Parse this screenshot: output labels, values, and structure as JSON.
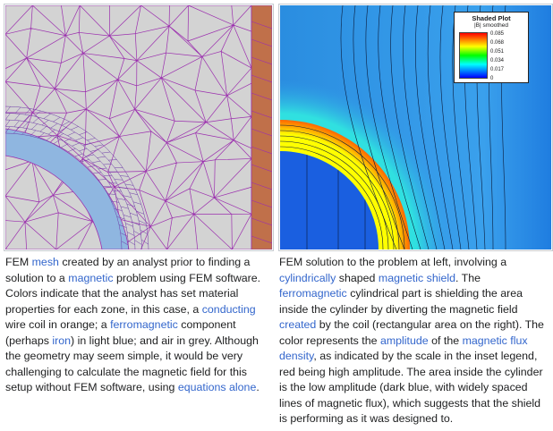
{
  "left_caption": {
    "t1": "FEM ",
    "link_mesh": "mesh",
    "t2": " created by an analyst prior to finding a solution to a ",
    "link_magnetic": "magnetic",
    "t3": " problem using FEM software. Colors indicate that the analyst has set material properties for each zone, in this case, a ",
    "link_conducting": "conducting",
    "t4": " wire coil in orange; a ",
    "link_ferromagnetic": "ferromagnetic",
    "t5": " component (perhaps ",
    "link_iron": "iron",
    "t6": ") in light blue; and air in grey. Although the geometry may seem simple, it would be very challenging to calculate the magnetic field for this setup without FEM software, using ",
    "link_equations": "equations alone",
    "t7": "."
  },
  "right_caption": {
    "t1": "FEM solution to the problem at left, involving a ",
    "link_cylindrically": "cylindrically",
    "t2": " shaped ",
    "link_magnetic_shield": "magnetic shield",
    "t3": ". The ",
    "link_ferromagnetic": "ferromagnetic",
    "t4": " cylindrical part is shielding the area inside the cylinder by diverting the magnetic field ",
    "link_created": "created",
    "t5": " by the coil (rectangular area on the right). The color represents the ",
    "link_amplitude": "amplitude",
    "t6": " of the ",
    "link_flux_density": "magnetic flux density",
    "t7": ", as indicated by the scale in the inset legend, red being high amplitude. The area inside the cylinder is the low amplitude (dark blue, with widely spaced lines of magnetic flux), which suggests that the shield is performing as it was designed to."
  },
  "legend": {
    "title": "Shaded Plot",
    "subtitle": "|B| smoothed",
    "ticks": [
      "0.085",
      "0.068",
      "0.051",
      "0.034",
      "0.017",
      "0"
    ]
  },
  "colors": {
    "link": "#3366cc",
    "air": "#d3d3d3",
    "mesh": "#9b2fae",
    "coil": "#c0704a",
    "ferromagnetic": "#8fb6e0"
  }
}
